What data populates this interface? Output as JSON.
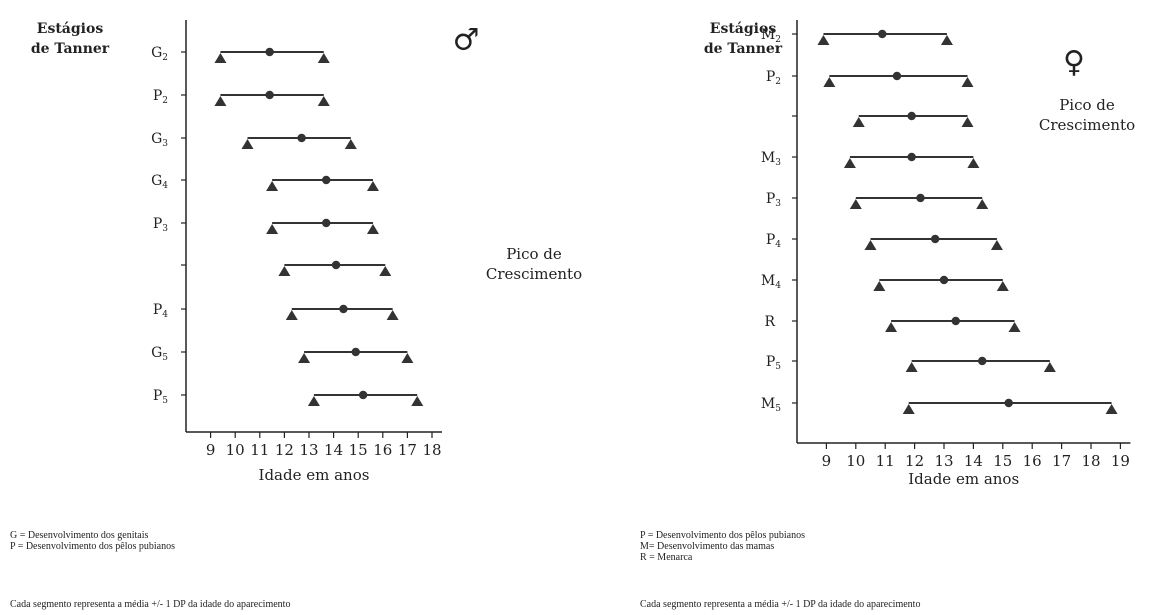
{
  "chart_data": [
    {
      "type": "range",
      "header": [
        "Estágios",
        "de Tanner"
      ],
      "symbol": "♂",
      "xlabel": "Idade em anos",
      "xlim": [
        8,
        18
      ],
      "xticks": [
        9,
        10,
        11,
        12,
        13,
        14,
        15,
        16,
        17,
        18
      ],
      "annotation": [
        "Pico de",
        "Crescimento"
      ],
      "rows": [
        {
          "label": "G",
          "sub": "2",
          "low": 9.4,
          "mean": 11.4,
          "high": 13.6
        },
        {
          "label": "P",
          "sub": "2",
          "low": 9.4,
          "mean": 11.4,
          "high": 13.6
        },
        {
          "label": "G",
          "sub": "3",
          "low": 10.5,
          "mean": 12.7,
          "high": 14.7
        },
        {
          "label": "G",
          "sub": "4",
          "low": 11.5,
          "mean": 13.7,
          "high": 15.6
        },
        {
          "label": "P",
          "sub": "3",
          "low": 11.5,
          "mean": 13.7,
          "high": 15.6
        },
        {
          "label": "",
          "sub": "",
          "low": 12.0,
          "mean": 14.1,
          "high": 16.1
        },
        {
          "label": "P",
          "sub": "4",
          "low": 12.3,
          "mean": 14.4,
          "high": 16.4
        },
        {
          "label": "G",
          "sub": "5",
          "low": 12.8,
          "mean": 14.9,
          "high": 17.0
        },
        {
          "label": "P",
          "sub": "5",
          "low": 13.2,
          "mean": 15.2,
          "high": 17.4
        }
      ],
      "legend": [
        "G = Desenvolvimento dos genitais",
        "P = Desenvolvimento dos pêlos pubianos"
      ],
      "footnote": "Cada segmento representa a média +/- 1 DP da idade do aparecimento"
    },
    {
      "type": "range",
      "header": [
        "Estágios",
        "de Tanner"
      ],
      "symbol": "♀",
      "xlabel": "Idade em anos",
      "xlim": [
        8,
        19
      ],
      "xticks": [
        9,
        10,
        11,
        12,
        13,
        14,
        15,
        16,
        17,
        18,
        19
      ],
      "annotation": [
        "Pico de",
        "Crescimento"
      ],
      "rows": [
        {
          "label": "M",
          "sub": "2",
          "low": 8.9,
          "mean": 10.9,
          "high": 13.1
        },
        {
          "label": "P",
          "sub": "2",
          "low": 9.1,
          "mean": 11.4,
          "high": 13.8
        },
        {
          "label": "",
          "sub": "",
          "low": 10.1,
          "mean": 11.9,
          "high": 13.8
        },
        {
          "label": "M",
          "sub": "3",
          "low": 9.8,
          "mean": 11.9,
          "high": 14.0
        },
        {
          "label": "P",
          "sub": "3",
          "low": 10.0,
          "mean": 12.2,
          "high": 14.3
        },
        {
          "label": "P",
          "sub": "4",
          "low": 10.5,
          "mean": 12.7,
          "high": 14.8
        },
        {
          "label": "M",
          "sub": "4",
          "low": 10.8,
          "mean": 13.0,
          "high": 15.0
        },
        {
          "label": "R",
          "sub": "",
          "low": 11.2,
          "mean": 13.4,
          "high": 15.4
        },
        {
          "label": "P",
          "sub": "5",
          "low": 11.9,
          "mean": 14.3,
          "high": 16.6
        },
        {
          "label": "M",
          "sub": "5",
          "low": 11.8,
          "mean": 15.2,
          "high": 18.7
        }
      ],
      "legend": [
        "P = Desenvolvimento dos pêlos pubianos",
        "M= Desenvolvimento das mamas",
        "R = Menarca"
      ],
      "footnote": "Cada segmento representa a média +/- 1 DP da idade do aparecimento"
    }
  ]
}
